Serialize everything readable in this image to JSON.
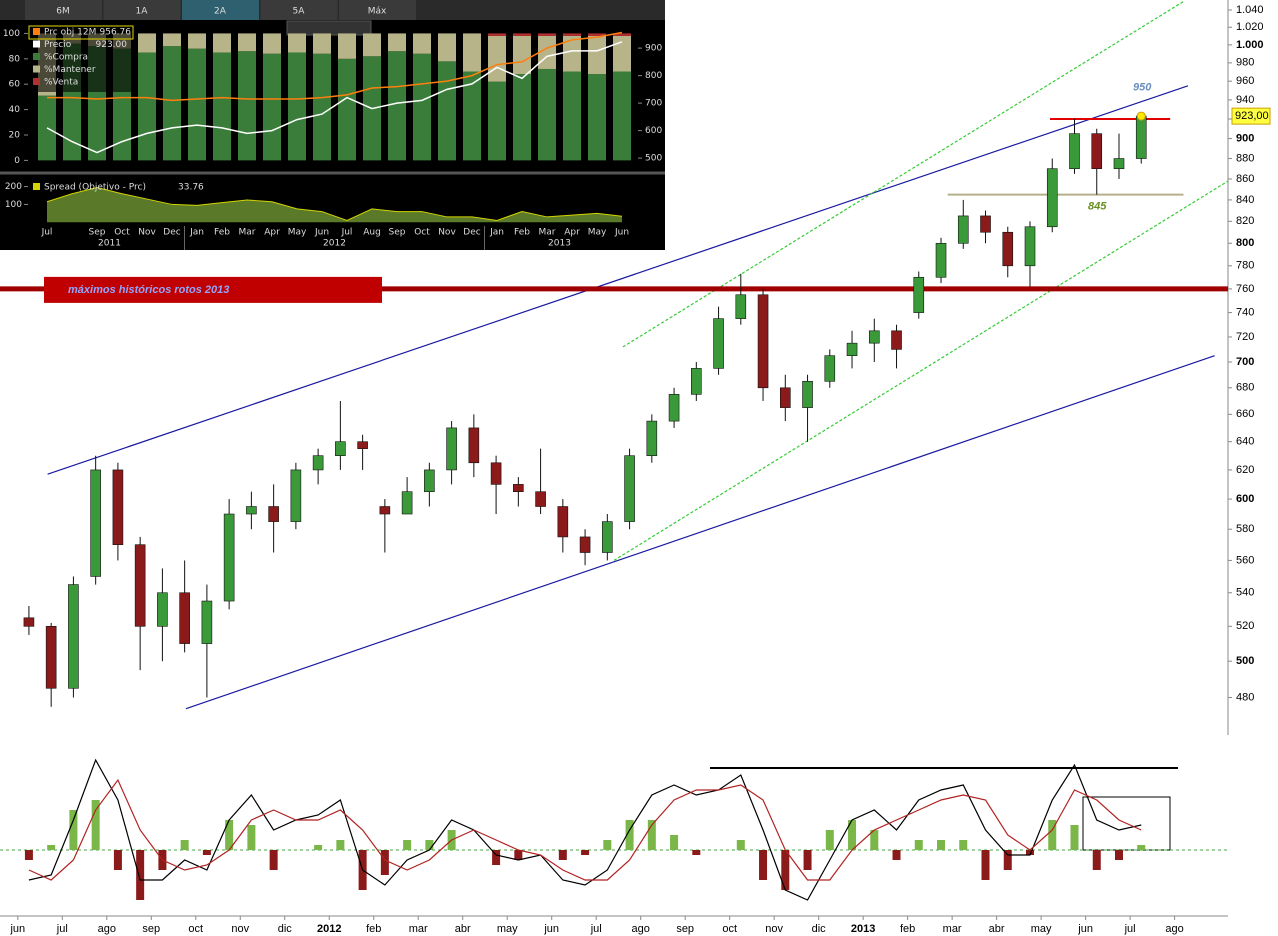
{
  "chart_data": [
    {
      "type": "candlestick",
      "log_scale": true,
      "grid": false,
      "x": [
        0.25,
        0.75,
        1.25,
        1.75,
        2.25,
        2.75,
        3.25,
        3.75,
        4.25,
        4.75,
        5.25,
        5.75,
        6.25,
        6.75,
        7.25,
        7.75,
        8.25,
        8.75,
        9.25,
        9.75,
        10.25,
        10.75,
        11.25,
        11.75,
        12.25,
        12.75,
        13.25,
        13.75,
        14.25,
        14.75,
        15.25,
        15.75,
        16.25,
        16.75,
        17.25,
        17.75,
        18.25,
        18.75,
        19.25,
        19.75,
        20.25,
        20.75,
        21.25,
        21.75,
        22.25,
        22.75,
        23.25,
        23.75,
        24.25,
        24.75,
        25.25
      ],
      "open": [
        525,
        520,
        485,
        550,
        620,
        570,
        520,
        540,
        510,
        535,
        590,
        595,
        585,
        620,
        630,
        640,
        595,
        590,
        605,
        620,
        650,
        625,
        610,
        605,
        595,
        575,
        565,
        585,
        630,
        655,
        675,
        695,
        735,
        755,
        680,
        665,
        685,
        705,
        715,
        725,
        740,
        770,
        800,
        825,
        810,
        780,
        815,
        870,
        905,
        870,
        880
      ],
      "high": [
        532,
        522,
        550,
        630,
        625,
        575,
        555,
        560,
        545,
        600,
        605,
        610,
        625,
        635,
        670,
        645,
        600,
        615,
        625,
        655,
        660,
        630,
        615,
        635,
        600,
        580,
        590,
        635,
        660,
        680,
        700,
        745,
        773,
        760,
        690,
        690,
        710,
        725,
        735,
        730,
        775,
        805,
        840,
        830,
        815,
        820,
        880,
        920,
        910,
        905,
        927
      ],
      "low": [
        515,
        475,
        480,
        545,
        560,
        495,
        500,
        505,
        480,
        530,
        580,
        565,
        580,
        610,
        620,
        620,
        565,
        590,
        595,
        610,
        615,
        590,
        595,
        590,
        565,
        557,
        560,
        580,
        625,
        650,
        670,
        690,
        730,
        670,
        655,
        640,
        680,
        695,
        700,
        695,
        735,
        765,
        795,
        800,
        770,
        762,
        810,
        865,
        845,
        860,
        875
      ],
      "close": [
        520,
        485,
        545,
        620,
        570,
        520,
        540,
        510,
        535,
        590,
        595,
        585,
        620,
        630,
        640,
        635,
        590,
        605,
        620,
        650,
        625,
        610,
        605,
        595,
        575,
        565,
        585,
        630,
        655,
        675,
        695,
        735,
        755,
        680,
        665,
        685,
        705,
        715,
        725,
        710,
        770,
        800,
        825,
        810,
        780,
        815,
        870,
        905,
        870,
        880,
        923
      ],
      "up_color": "#3a9a3a",
      "down_color": "#8b1a1a",
      "xlim": [
        -0.4,
        27.2
      ],
      "ylim": [
        468,
        1040
      ],
      "yticks": [
        {
          "value": 1040,
          "label": "1.040"
        },
        {
          "value": 1020,
          "label": "1.020"
        },
        {
          "value": 1000,
          "label": "1.000"
        },
        980,
        960,
        940,
        920,
        900,
        880,
        860,
        840,
        820,
        800,
        780,
        760,
        740,
        720,
        700,
        680,
        660,
        640,
        620,
        600,
        580,
        560,
        540,
        520,
        500,
        480
      ],
      "xticks": [
        {
          "value": 0,
          "label": "jun"
        },
        {
          "value": 1,
          "label": "jul"
        },
        {
          "value": 2,
          "label": "ago"
        },
        {
          "value": 3,
          "label": "sep"
        },
        {
          "value": 4,
          "label": "oct"
        },
        {
          "value": 5,
          "label": "nov"
        },
        {
          "value": 6,
          "label": "dic"
        },
        {
          "value": 7,
          "label": "2012"
        },
        {
          "value": 8,
          "label": "feb"
        },
        {
          "value": 9,
          "label": "mar"
        },
        {
          "value": 10,
          "label": "abr"
        },
        {
          "value": 11,
          "label": "may"
        },
        {
          "value": 12,
          "label": "jun"
        },
        {
          "value": 13,
          "label": "jul"
        },
        {
          "value": 14,
          "label": "ago"
        },
        {
          "value": 15,
          "label": "sep"
        },
        {
          "value": 16,
          "label": "oct"
        },
        {
          "value": 17,
          "label": "nov"
        },
        {
          "value": 18,
          "label": "dic"
        },
        {
          "value": 19,
          "label": "2013"
        },
        {
          "value": 20,
          "label": "feb"
        },
        {
          "value": 21,
          "label": "mar"
        },
        {
          "value": 22,
          "label": "abr"
        },
        {
          "value": 23,
          "label": "may"
        },
        {
          "value": 24,
          "label": "jun"
        },
        {
          "value": 25,
          "label": "jul"
        },
        {
          "value": 26,
          "label": "ago"
        }
      ],
      "trendlines": [
        {
          "color": "#1a1aa0",
          "dashed": false,
          "points": [
            [
              0.67,
              617
            ],
            [
              26.3,
              955
            ]
          ],
          "label": "950"
        },
        {
          "color": "#1a1aa0",
          "dashed": false,
          "points": [
            [
              3.78,
              474
            ],
            [
              26.9,
              705
            ]
          ]
        },
        {
          "color": "#33cc33",
          "dashed": true,
          "points": [
            [
              13.6,
              712
            ],
            [
              26.2,
              1050
            ]
          ]
        },
        {
          "color": "#33cc33",
          "dashed": true,
          "points": [
            [
              13.4,
              560
            ],
            [
              27.2,
              858
            ]
          ]
        }
      ],
      "levels": [
        {
          "value": 760,
          "color": "#a00000",
          "x_range": [
            -0.4,
            27.2
          ],
          "label": "máximos históricos rotos 2013"
        },
        {
          "value": 920,
          "color": "#e00000",
          "x_range": [
            23.2,
            25.9
          ]
        },
        {
          "value": 845,
          "color": "#b5b08a",
          "x_range": [
            20.9,
            26.2
          ],
          "label": "845"
        }
      ],
      "last_price": {
        "value": 923,
        "label": "923,00"
      }
    },
    {
      "type": "oscillator",
      "x": [
        0.25,
        0.75,
        1.25,
        1.75,
        2.25,
        2.75,
        3.25,
        3.75,
        4.25,
        4.75,
        5.25,
        5.75,
        6.25,
        6.75,
        7.25,
        7.75,
        8.25,
        8.75,
        9.25,
        9.75,
        10.25,
        10.75,
        11.25,
        11.75,
        12.25,
        12.75,
        13.25,
        13.75,
        14.25,
        14.75,
        15.25,
        15.75,
        16.25,
        16.75,
        17.25,
        17.75,
        18.25,
        18.75,
        19.25,
        19.75,
        20.25,
        20.75,
        21.25,
        21.75,
        22.25,
        22.75,
        23.25,
        23.75,
        24.25,
        24.75,
        25.25
      ],
      "series": [
        {
          "color": "#000000",
          "values": [
            -3,
            -2.5,
            3,
            9,
            5,
            -3,
            -3,
            -1,
            -2,
            3,
            5.5,
            2,
            3,
            3.5,
            5,
            -2,
            -3.5,
            -1,
            0,
            3,
            2,
            -0.5,
            -1,
            -0.5,
            -3,
            -3.5,
            -2,
            2,
            5.5,
            6.5,
            5.5,
            6,
            7.5,
            2,
            -4,
            -5,
            -1,
            3,
            4,
            2,
            5,
            6,
            6.5,
            2,
            -0.5,
            -0.5,
            5,
            8.5,
            3,
            2,
            2.5
          ]
        },
        {
          "color": "#b22222",
          "values": [
            -2,
            -3,
            -1,
            4,
            7,
            2,
            -1,
            -2,
            -1.5,
            0,
            3,
            4,
            3,
            3,
            4,
            2,
            -1,
            -2,
            -1,
            1,
            2,
            1,
            0,
            -0.5,
            -2,
            -3,
            -3,
            -1,
            2.5,
            5,
            6,
            6,
            6.5,
            5,
            0,
            -3,
            -3,
            0,
            2,
            3,
            4,
            5,
            5.5,
            5,
            1.5,
            0,
            2,
            6,
            5,
            3,
            2
          ]
        }
      ],
      "histogram": {
        "up_color": "#7ab648",
        "down_color": "#8b1a1a",
        "values": [
          -1,
          0.5,
          4,
          5,
          -2,
          -5,
          -2,
          1,
          -0.5,
          3,
          2.5,
          -2,
          0,
          0.5,
          1,
          -4,
          -2.5,
          1,
          1,
          2,
          0,
          -1.5,
          -1,
          0,
          -1,
          -0.5,
          1,
          3,
          3,
          1.5,
          -0.5,
          0,
          1,
          -3,
          -4,
          -2,
          2,
          3,
          2,
          -1,
          1,
          1,
          1,
          -3,
          -2,
          -0.5,
          3,
          2.5,
          -2,
          -1,
          0.5
        ]
      }
    },
    {
      "type": "stacked-bar",
      "grid": false,
      "tabs": [
        "6M",
        "1A",
        "2A",
        "5A",
        "Máx"
      ],
      "selected_tab": 2,
      "categories": [
        "Jul",
        null,
        "Sep",
        "Oct",
        "Nov",
        "Dec",
        "Jan",
        "Feb",
        "Mar",
        "Apr",
        "May",
        "Jun",
        "Jul",
        "Aug",
        "Sep",
        "Oct",
        "Nov",
        "Dec",
        "Jan",
        "Feb",
        "Mar",
        "Apr",
        "May",
        "Jun"
      ],
      "years": [
        "2011",
        "2012",
        "2013"
      ],
      "ylim": [
        -6,
        109
      ],
      "yticks": [
        0,
        20,
        40,
        60,
        80,
        100
      ],
      "y2lim": [
        464,
        995
      ],
      "y2ticks": [
        500,
        600,
        700,
        800,
        900
      ],
      "series": [
        {
          "name": "Prc obj 12M",
          "color": "#ff7f0e",
          "axis": "y2",
          "values": [
            720,
            720,
            715,
            720,
            720,
            710,
            715,
            720,
            715,
            715,
            715,
            720,
            730,
            755,
            760,
            770,
            780,
            800,
            840,
            850,
            900,
            930,
            940,
            956.76
          ]
        },
        {
          "name": "Precio",
          "color": "#ffffff",
          "axis": "y2",
          "values": [
            610,
            560,
            520,
            560,
            590,
            610,
            620,
            610,
            590,
            600,
            640,
            660,
            720,
            680,
            700,
            710,
            750,
            770,
            830,
            790,
            870,
            890,
            890,
            923
          ],
          "value_labels": [
            null,
            null,
            null,
            null,
            null,
            null,
            null,
            null,
            null,
            null,
            null,
            null,
            null,
            null,
            null,
            null,
            null,
            null,
            null,
            null,
            null,
            null,
            null,
            "923.00"
          ]
        },
        {
          "name": "%Compra",
          "color": "#3a7d3a",
          "values": [
            51,
            92,
            90,
            88,
            85,
            90,
            88,
            85,
            86,
            84,
            85,
            84,
            80,
            82,
            86,
            84,
            78,
            70,
            62,
            68,
            72,
            70,
            68,
            70
          ]
        },
        {
          "name": "%Mantener",
          "color": "#b8b48a",
          "values": [
            49,
            8,
            10,
            12,
            15,
            10,
            12,
            15,
            14,
            16,
            15,
            16,
            20,
            18,
            14,
            16,
            22,
            30,
            36,
            30,
            26,
            28,
            30,
            28
          ]
        },
        {
          "name": "%Venta",
          "color": "#b03030",
          "values": [
            0,
            0,
            0,
            0,
            0,
            0,
            0,
            0,
            0,
            0,
            0,
            0,
            0,
            0,
            0,
            0,
            0,
            0,
            2,
            2,
            2,
            2,
            2,
            2
          ]
        }
      ],
      "spread": {
        "name": "Spread (Objetivo - Prc)",
        "color": "#d4d400",
        "fill": "#5a7a2a",
        "values": [
          115,
          160,
          195,
          160,
          130,
          100,
          95,
          110,
          125,
          115,
          75,
          60,
          10,
          75,
          60,
          60,
          30,
          30,
          10,
          60,
          30,
          40,
          50,
          33.76
        ],
        "ylim": [
          -32,
          248
        ],
        "yticks": [
          100,
          200
        ]
      }
    }
  ]
}
